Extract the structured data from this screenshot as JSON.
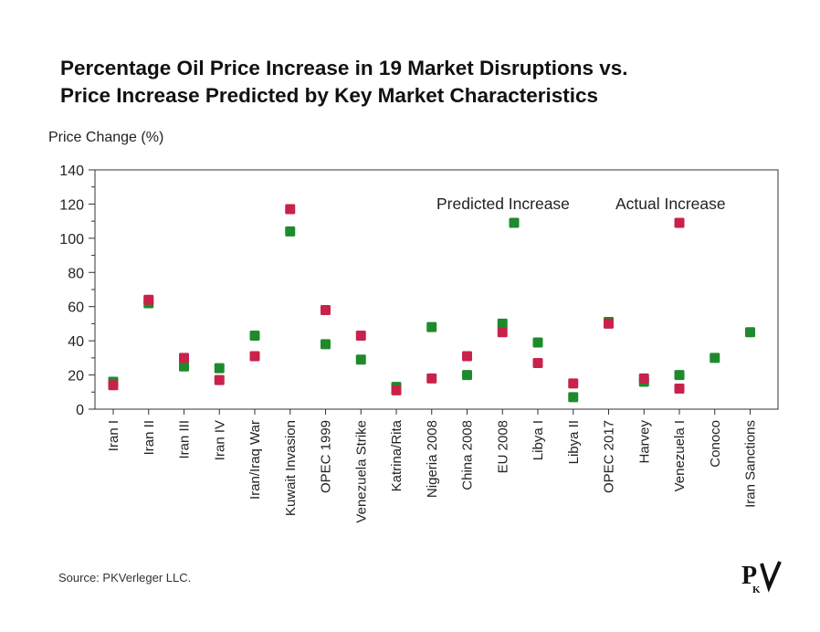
{
  "page": {
    "title_line1": "Percentage Oil Price Increase in 19 Market Disruptions vs.",
    "title_line2": "Price Increase Predicted by Key Market Characteristics",
    "source": "Source: PKVerleger LLC.",
    "logo_text": "PKV"
  },
  "chart_data": {
    "type": "scatter",
    "title": "Percentage Oil Price Increase in 19 Market Disruptions vs. Price Increase Predicted by Key Market Characteristics",
    "ylabel": "Price Change (%)",
    "xlabel": "",
    "ylim": [
      0,
      140
    ],
    "yticks": [
      0,
      20,
      40,
      60,
      80,
      100,
      120,
      140
    ],
    "grid": false,
    "legend_placement": "top-right (inside plot)",
    "categories": [
      "Iran I",
      "Iran II",
      "Iran III",
      "Iran IV",
      "Iran/Iraq War",
      "Kuwait Invasion",
      "OPEC 1999",
      "Venezuela Strike",
      "Katrina/Rita",
      "Nigeria 2008",
      "China 2008",
      "EU 2008",
      "Libya I",
      "Libya II",
      "OPEC 2017",
      "Harvey",
      "Venezuela I",
      "Conoco",
      "Iran Sanctions"
    ],
    "series": [
      {
        "name": "Predicted Increase",
        "color": "#1f8a2c",
        "values": [
          16,
          62,
          25,
          24,
          43,
          104,
          38,
          29,
          13,
          48,
          20,
          50,
          39,
          7,
          51,
          16,
          20,
          30,
          45
        ]
      },
      {
        "name": "Actual Increase",
        "color": "#c8224b",
        "values": [
          14,
          64,
          30,
          17,
          31,
          117,
          58,
          43,
          11,
          18,
          31,
          45,
          27,
          15,
          50,
          18,
          12,
          null,
          null
        ]
      }
    ],
    "legend_markers": {
      "predicted_value": 109,
      "actual_value": 109
    }
  }
}
